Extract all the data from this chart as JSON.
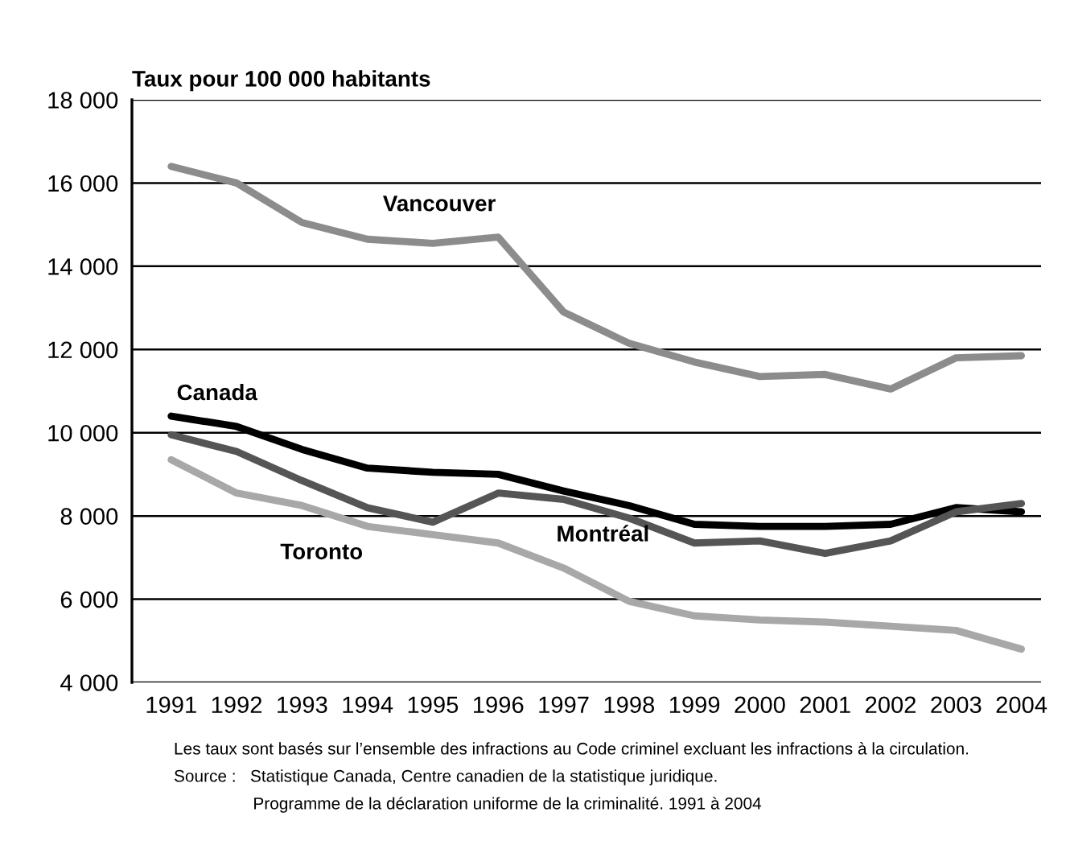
{
  "chart_data": {
    "type": "line",
    "ylabel": "Taux pour 100 000 habitants",
    "categories": [
      "1991",
      "1992",
      "1993",
      "1994",
      "1995",
      "1996",
      "1997",
      "1998",
      "1999",
      "2000",
      "2001",
      "2002",
      "2003",
      "2004"
    ],
    "series": [
      {
        "name": "Vancouver",
        "color": "#8c8c8c",
        "values": [
          16400,
          16000,
          15050,
          14650,
          14550,
          14700,
          12900,
          12150,
          11700,
          11350,
          11400,
          11050,
          11800,
          11850
        ]
      },
      {
        "name": "Canada",
        "color": "#000000",
        "values": [
          10400,
          10150,
          9600,
          9150,
          9050,
          9000,
          8600,
          8250,
          7800,
          7750,
          7750,
          7800,
          8200,
          8100
        ]
      },
      {
        "name": "Montréal",
        "color": "#555555",
        "values": [
          9950,
          9550,
          8850,
          8200,
          7850,
          8550,
          8400,
          7950,
          7350,
          7400,
          7100,
          7400,
          8100,
          8300
        ]
      },
      {
        "name": "Toronto",
        "color": "#a8a8a8",
        "values": [
          9350,
          8550,
          8250,
          7750,
          7550,
          7350,
          6750,
          5950,
          5600,
          5500,
          5450,
          5350,
          5250,
          4800
        ]
      }
    ],
    "ylim": [
      4000,
      18000
    ],
    "yticks": [
      {
        "value": 4000,
        "label": "4 000"
      },
      {
        "value": 6000,
        "label": "6 000"
      },
      {
        "value": 8000,
        "label": "8 000"
      },
      {
        "value": 10000,
        "label": "10 000"
      },
      {
        "value": 12000,
        "label": "12 000"
      },
      {
        "value": 14000,
        "label": "14 000"
      },
      {
        "value": 16000,
        "label": "16 000"
      },
      {
        "value": 18000,
        "label": "18 000"
      }
    ],
    "grid": "y",
    "legend": false,
    "marker": "none",
    "line_style": "solid",
    "annotations": [
      "Les taux sont basés sur l’ensemble des infractions au Code criminel excluant les infractions à la circulation.",
      "Source :   Statistique Canada, Centre canadien de la statistique juridique.",
      "                 Programme de la déclaration uniforme de la criminalité. 1991 à 2004"
    ]
  }
}
